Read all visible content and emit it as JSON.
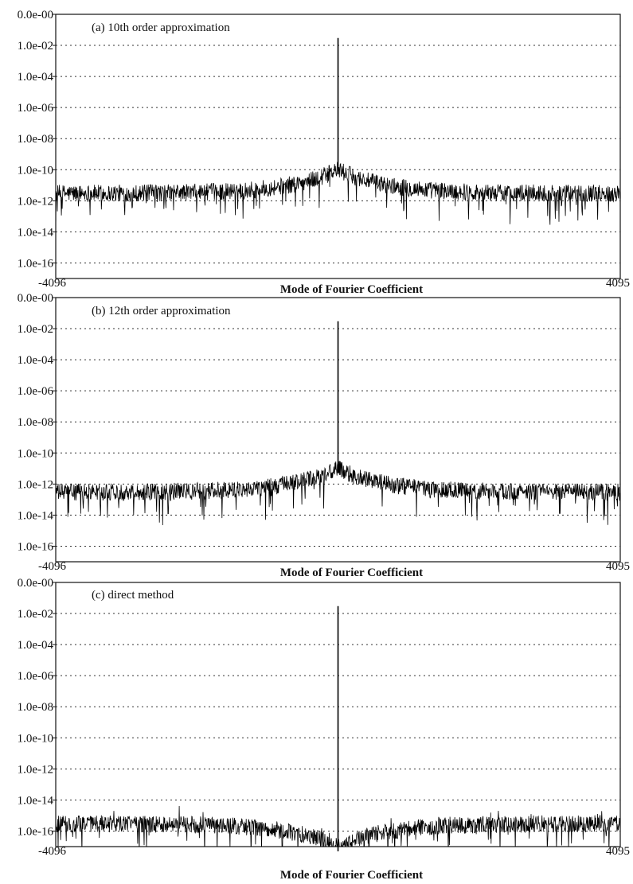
{
  "chart_data": [
    {
      "type": "line",
      "y_scale": "log",
      "annotation": "(a) 10th order approximation",
      "xlabel": "Mode of Fourier Coefficient",
      "x_range": [
        -4096,
        4095
      ],
      "x_tick_labels": [
        "-4096",
        "4095"
      ],
      "ylim": [
        1e-17,
        1
      ],
      "y_tick_labels": [
        "0.0e-00",
        "1.0e-02",
        "1.0e-04",
        "1.0e-06",
        "1.0e-08",
        "1.0e-10",
        "1.0e-12",
        "1.0e-14",
        "1.0e-16"
      ],
      "grid": true,
      "grid_style": "dotted horizontal",
      "series_color": "#000000",
      "features": {
        "peak_mode": 0,
        "peak_value": 0.03,
        "base_level": 3e-12,
        "base_level_at_center": 1e-10,
        "noise_floor_edges": 3e-12
      }
    },
    {
      "type": "line",
      "y_scale": "log",
      "annotation": "(b) 12th order approximation",
      "xlabel": "Mode of Fourier Coefficient",
      "x_range": [
        -4096,
        4095
      ],
      "x_tick_labels": [
        "-4096",
        "4095"
      ],
      "ylim": [
        1e-17,
        1
      ],
      "y_tick_labels": [
        "0.0e-00",
        "1.0e-02",
        "1.0e-04",
        "1.0e-06",
        "1.0e-08",
        "1.0e-10",
        "1.0e-12",
        "1.0e-14",
        "1.0e-16"
      ],
      "grid": true,
      "grid_style": "dotted horizontal",
      "series_color": "#000000",
      "features": {
        "peak_mode": 0,
        "peak_value": 0.03,
        "base_level": 3e-13,
        "base_level_at_center": 1e-11,
        "noise_floor_edges": 3e-13
      }
    },
    {
      "type": "line",
      "y_scale": "log",
      "annotation": "(c) direct method",
      "xlabel": "Mode of Fourier Coefficient",
      "x_range": [
        -4096,
        4095
      ],
      "x_tick_labels": [
        "-4096",
        "4095"
      ],
      "ylim": [
        1e-17,
        1
      ],
      "y_tick_labels": [
        "0.0e-00",
        "1.0e-02",
        "1.0e-04",
        "1.0e-06",
        "1.0e-08",
        "1.0e-10",
        "1.0e-12",
        "1.0e-14",
        "1.0e-16"
      ],
      "grid": true,
      "grid_style": "dotted horizontal",
      "series_color": "#000000",
      "features": {
        "peak_mode": 0,
        "peak_value": 0.03,
        "base_level": 3e-16,
        "base_level_at_center": 1e-17,
        "noise_floor_edges": 3e-16
      }
    }
  ]
}
